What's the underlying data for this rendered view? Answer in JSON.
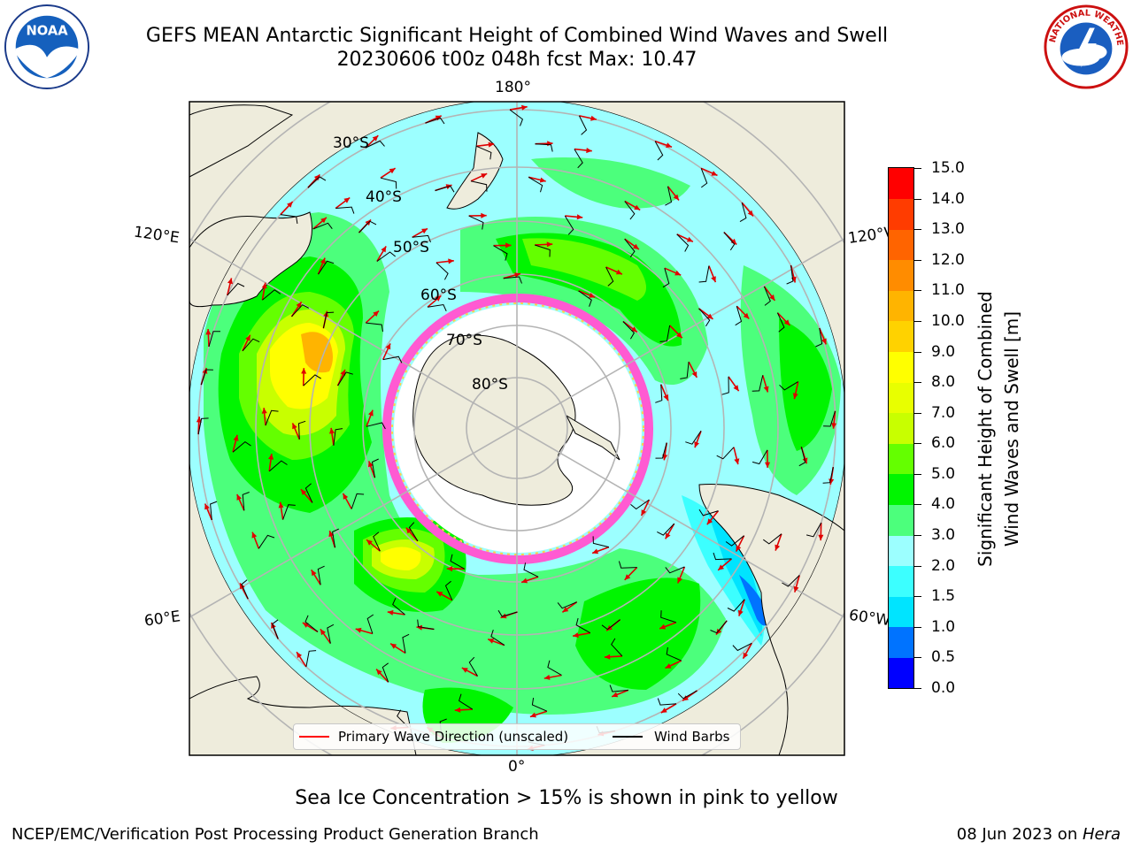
{
  "title_line1": "GEFS MEAN Antarctic Significant Height of Combined Wind Waves and Swell",
  "title_line2": "20230606 t00z 048h fcst   Max: 10.47",
  "longitude_labels": {
    "top": "180°",
    "bottom": "0°",
    "upper_left": "120°E",
    "upper_right": "120°W",
    "lower_left": "60°E",
    "lower_right": "60°W"
  },
  "latitude_labels": [
    "30°S",
    "40°S",
    "50°S",
    "60°S",
    "70°S",
    "80°S"
  ],
  "colorbar": {
    "title_line1": "Significant Height of Combined",
    "title_line2": "Wind Waves and Swell [m]",
    "levels": [
      "0.0",
      "0.5",
      "1.0",
      "1.5",
      "2.0",
      "3.0",
      "4.0",
      "5.0",
      "6.0",
      "7.0",
      "8.0",
      "9.0",
      "10.0",
      "11.0",
      "12.0",
      "13.0",
      "14.0",
      "15.0"
    ],
    "colors": [
      "#0000ff",
      "#0073ff",
      "#00e4ff",
      "#3cffff",
      "#9cffff",
      "#4cff7c",
      "#00f500",
      "#64ff00",
      "#c8ff00",
      "#e8ff00",
      "#ffff00",
      "#ffd200",
      "#ffb400",
      "#ff8c00",
      "#ff6400",
      "#ff3c00",
      "#ff0000"
    ]
  },
  "legend": {
    "wave_label": "Primary Wave Direction (unscaled)",
    "wind_label": "Wind Barbs",
    "wave_color": "#ff0000",
    "wind_color": "#000000"
  },
  "note": "Sea Ice Concentration > 15% is shown in pink to yellow",
  "footer_left": "NCEP/EMC/Verification Post Processing Product Generation Branch",
  "footer_date": "08 Jun 2023 on ",
  "footer_host": "Hera",
  "logos": {
    "left": "NOAA",
    "right": "NATIONAL WEATHER SERVICE"
  },
  "colors": {
    "land": "#eeecdc",
    "ocean_low": "#9cffff",
    "grid": "#b4b4b4",
    "ice": "#ff5ad2"
  }
}
